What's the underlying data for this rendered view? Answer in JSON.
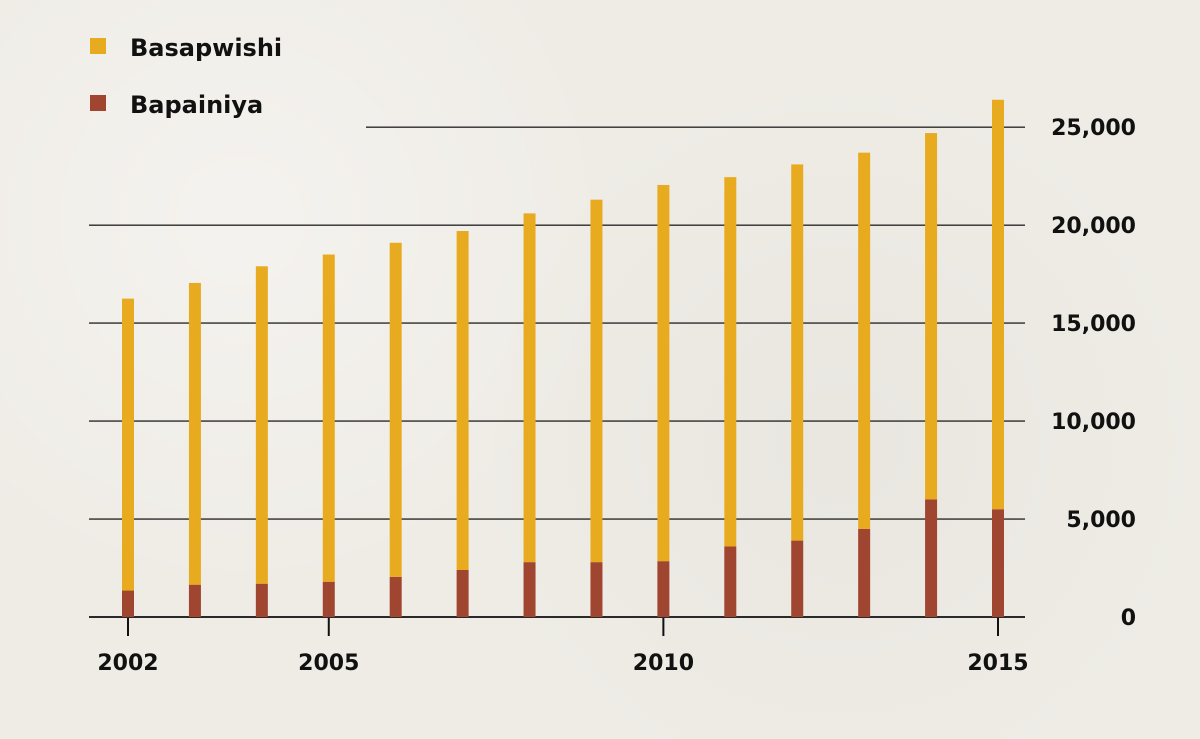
{
  "chart_data": {
    "type": "bar",
    "stacked": true,
    "categories": [
      "2002",
      "2003",
      "2004",
      "2005",
      "2006",
      "2007",
      "2008",
      "2009",
      "2010",
      "2011",
      "2012",
      "2013",
      "2014",
      "2015"
    ],
    "x_tick_labels": [
      "2002",
      "2005",
      "2010",
      "2015"
    ],
    "y_ticks": [
      0,
      5000,
      10000,
      15000,
      20000,
      25000
    ],
    "y_tick_labels": [
      "0",
      "5,000",
      "10,000",
      "15,000",
      "20,000",
      "25,000"
    ],
    "ylim": [
      0,
      27000
    ],
    "grid": true,
    "legend_position": "top-left",
    "y_axis_position": "right",
    "series": [
      {
        "name": "Bapainiya",
        "values": [
          1350,
          1650,
          1700,
          1800,
          2050,
          2400,
          2800,
          2800,
          2850,
          3600,
          3900,
          4500,
          6000,
          5500
        ],
        "color": "#a0452f"
      },
      {
        "name": "Basapwishi",
        "values": [
          14900,
          15400,
          16200,
          16700,
          17050,
          17300,
          17800,
          18500,
          19200,
          18850,
          19200,
          19200,
          18700,
          20900
        ],
        "color": "#e8ab1f"
      }
    ],
    "totals": [
      16250,
      17050,
      17900,
      18500,
      19100,
      19700,
      20600,
      21300,
      22050,
      22450,
      23100,
      23700,
      24700,
      26400
    ]
  }
}
